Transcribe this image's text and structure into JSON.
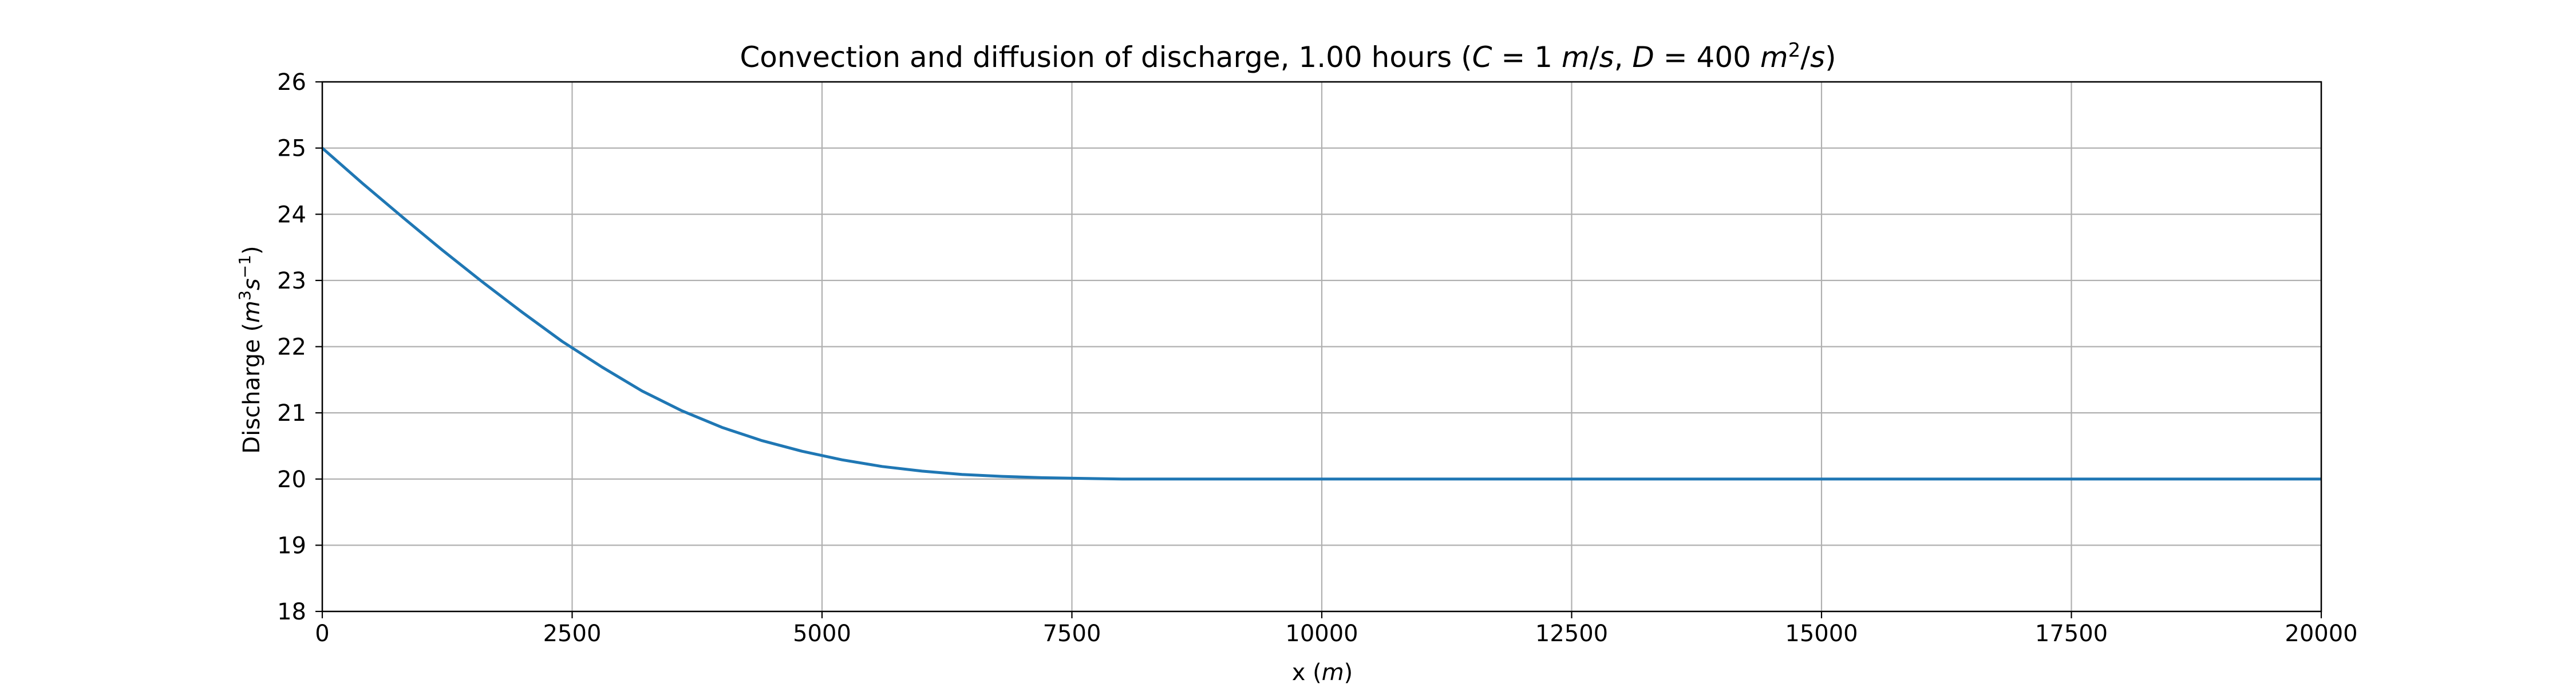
{
  "chart_data": {
    "type": "line",
    "title": "Convection and diffusion of discharge, 1.00 hours (C = 1 m/s, D = 400 m²/s)",
    "xlabel": "x (m)",
    "ylabel": "Discharge (m³s⁻¹)",
    "xlim": [
      0,
      20000
    ],
    "ylim": [
      18,
      26
    ],
    "xticks": [
      0,
      2500,
      5000,
      7500,
      10000,
      12500,
      15000,
      17500,
      20000
    ],
    "xtick_labels": [
      "0",
      "2500",
      "5000",
      "7500",
      "10000",
      "12500",
      "15000",
      "17500",
      "20000"
    ],
    "yticks": [
      18,
      19,
      20,
      21,
      22,
      23,
      24,
      25,
      26
    ],
    "ytick_labels": [
      "18",
      "19",
      "20",
      "21",
      "22",
      "23",
      "24",
      "25",
      "26"
    ],
    "grid": true,
    "series": [
      {
        "color": "#1f77b4",
        "x": [
          0,
          400,
          800,
          1200,
          1600,
          2000,
          2400,
          2800,
          3200,
          3600,
          4000,
          4400,
          4800,
          5200,
          5600,
          6000,
          6400,
          6800,
          7200,
          7600,
          8000,
          8500,
          9000,
          10000,
          12000,
          15000,
          17500,
          20000
        ],
        "y": [
          25.0,
          24.47,
          23.96,
          23.46,
          22.98,
          22.52,
          22.08,
          21.69,
          21.33,
          21.03,
          20.78,
          20.58,
          20.42,
          20.29,
          20.19,
          20.12,
          20.07,
          20.04,
          20.02,
          20.01,
          20.0,
          20.0,
          20.0,
          20.0,
          20.0,
          20.0,
          20.0,
          20.0
        ]
      }
    ]
  }
}
